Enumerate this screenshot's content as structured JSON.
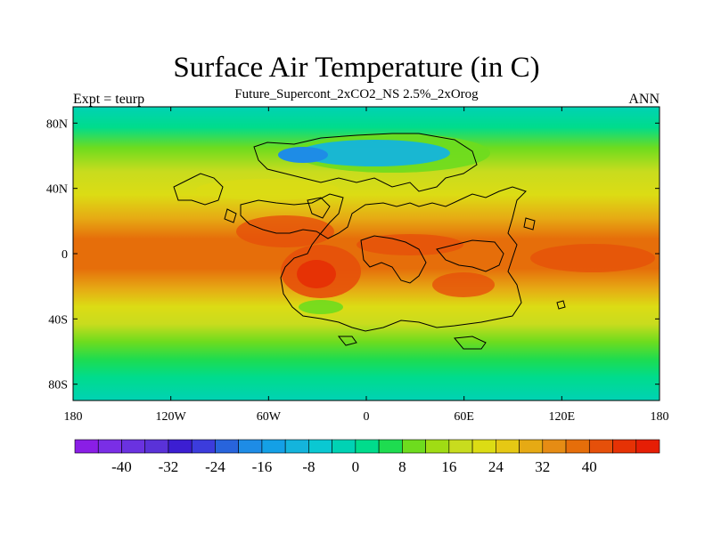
{
  "title": "Surface Air Temperature (in C)",
  "subtitle": "Future_Supercont_2xCO2_NS 2.5%_2xOrog",
  "left_label": "Expt = teurp",
  "right_label": "ANN",
  "map": {
    "lon_range": [
      -180,
      180
    ],
    "lat_range": [
      -90,
      90
    ],
    "lat_ticks": [
      {
        "value": 80,
        "label": "80N"
      },
      {
        "value": 40,
        "label": "40N"
      },
      {
        "value": 0,
        "label": "0"
      },
      {
        "value": -40,
        "label": "40S"
      },
      {
        "value": -80,
        "label": "80S"
      }
    ],
    "lon_ticks": [
      {
        "value": -180,
        "label": "180"
      },
      {
        "value": -120,
        "label": "120W"
      },
      {
        "value": -60,
        "label": "60W"
      },
      {
        "value": 0,
        "label": "0"
      },
      {
        "value": 60,
        "label": "60E"
      },
      {
        "value": 120,
        "label": "120E"
      },
      {
        "value": 180,
        "label": "180"
      }
    ]
  },
  "colorbar": {
    "colors": [
      "#8a1ee6",
      "#7a2ee6",
      "#6a32e0",
      "#5a32d8",
      "#3c1ed2",
      "#3c3cdc",
      "#2864dc",
      "#1e8ce6",
      "#14a0e6",
      "#14b4dc",
      "#0ac8d2",
      "#00d2b4",
      "#00dc8c",
      "#1edc50",
      "#6edc1e",
      "#a0dc14",
      "#c8dc1e",
      "#dcdc14",
      "#e6c814",
      "#e6aa14",
      "#e68c14",
      "#e66e0a",
      "#e6500a",
      "#e63205",
      "#e61e05"
    ],
    "tick_labels": [
      "-40",
      "-32",
      "-24",
      "-16",
      "-8",
      "0",
      "8",
      "16",
      "24",
      "32",
      "40"
    ]
  }
}
